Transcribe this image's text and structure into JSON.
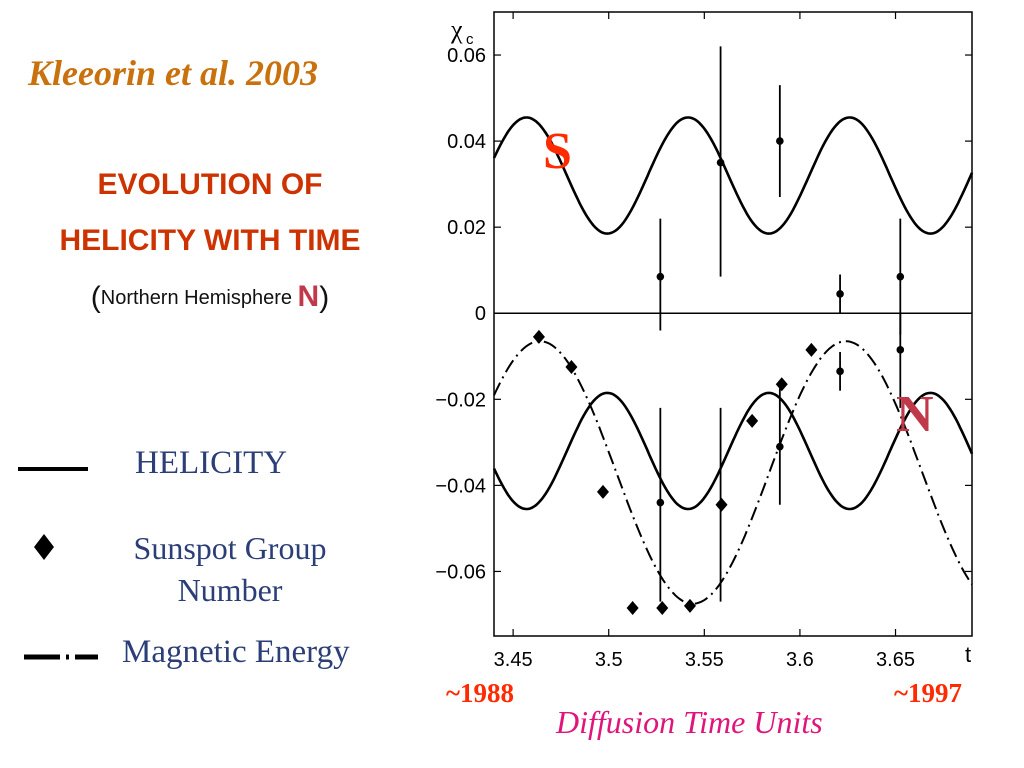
{
  "slide": {
    "citation": "Kleeorin et al. 2003",
    "heading_line1": "EVOLUTION OF",
    "heading_line2": "HELICITY WITH TIME",
    "subtitle_open": "(",
    "subtitle_text": "Northern Hemisphere ",
    "subtitle_n": "N",
    "subtitle_close": ")",
    "year_start": "~1988",
    "year_end": "~1997",
    "x_caption": "Diffusion Time Units"
  },
  "legend": {
    "helicity": "HELICITY",
    "sunspot": "Sunspot Group Number",
    "magnetic": "Magnetic Energy"
  },
  "colors": {
    "accent_orange": "#c9720d",
    "heading_red": "#cc3300",
    "legend_blue": "#2c3e77",
    "marker_red": "#ff2a00",
    "caption_pink": "#e0157c",
    "label_N": "#c0394b",
    "label_S": "#ff2a00"
  },
  "chart_data": {
    "type": "line",
    "ylabel": "χc",
    "xlabel": "t",
    "xlim": [
      3.44,
      3.69
    ],
    "ylim": [
      -0.075,
      0.07
    ],
    "xticks": [
      3.45,
      3.5,
      3.55,
      3.6,
      3.65
    ],
    "xtick_labels": [
      "3.45",
      "3.5",
      "3.55",
      "3.6",
      "3.65"
    ],
    "yticks": [
      0.06,
      0.04,
      0.02,
      0,
      -0.02,
      -0.04,
      -0.06
    ],
    "ytick_labels": [
      "0.06",
      "0.04",
      "0.02",
      "0",
      "−0.02",
      "−0.04",
      "−0.06"
    ],
    "panel_labels": {
      "south": "S",
      "north": "N"
    },
    "zero_line": 0,
    "helicity_model": {
      "south": {
        "center": 0.032,
        "amplitude": 0.0135,
        "peak_t": 3.5415,
        "period": 0.0845
      },
      "north": {
        "center": -0.032,
        "amplitude": 0.0135,
        "trough_t": 3.5415,
        "period": 0.0845
      }
    },
    "magnetic_energy_model": {
      "center": -0.037,
      "amplitude": 0.0305,
      "peak_t": 3.624,
      "period": 0.16
    },
    "series": [
      {
        "name": "HELICITY",
        "kind": "helicity-points",
        "points": [
          {
            "x": 3.527,
            "y": 0.0085,
            "lo": -0.004,
            "hi": 0.022
          },
          {
            "x": 3.5585,
            "y": 0.035,
            "lo": 0.0085,
            "hi": 0.062
          },
          {
            "x": 3.5895,
            "y": 0.04,
            "lo": 0.027,
            "hi": 0.053
          },
          {
            "x": 3.621,
            "y": 0.0045,
            "lo": 0.0,
            "hi": 0.009
          },
          {
            "x": 3.6525,
            "y": 0.0085,
            "lo": -0.005,
            "hi": 0.022
          },
          {
            "x": 3.527,
            "y": -0.044,
            "lo": -0.067,
            "hi": -0.022
          },
          {
            "x": 3.5585,
            "y": -0.0445,
            "lo": -0.067,
            "hi": -0.022
          },
          {
            "x": 3.5895,
            "y": -0.031,
            "lo": -0.0445,
            "hi": -0.0175
          },
          {
            "x": 3.621,
            "y": -0.0135,
            "lo": -0.018,
            "hi": -0.009
          },
          {
            "x": 3.6525,
            "y": -0.0085,
            "lo": -0.022,
            "hi": 0.0
          }
        ]
      },
      {
        "name": "Sunspot Group Number",
        "kind": "sunspot",
        "points": [
          {
            "x": 3.4635,
            "y": -0.0055
          },
          {
            "x": 3.4805,
            "y": -0.0125
          },
          {
            "x": 3.497,
            "y": -0.0415
          },
          {
            "x": 3.5125,
            "y": -0.0685
          },
          {
            "x": 3.528,
            "y": -0.0685
          },
          {
            "x": 3.5425,
            "y": -0.068
          },
          {
            "x": 3.559,
            "y": -0.0445
          },
          {
            "x": 3.575,
            "y": -0.025
          },
          {
            "x": 3.5905,
            "y": -0.0165
          },
          {
            "x": 3.606,
            "y": -0.0085
          }
        ]
      }
    ]
  }
}
